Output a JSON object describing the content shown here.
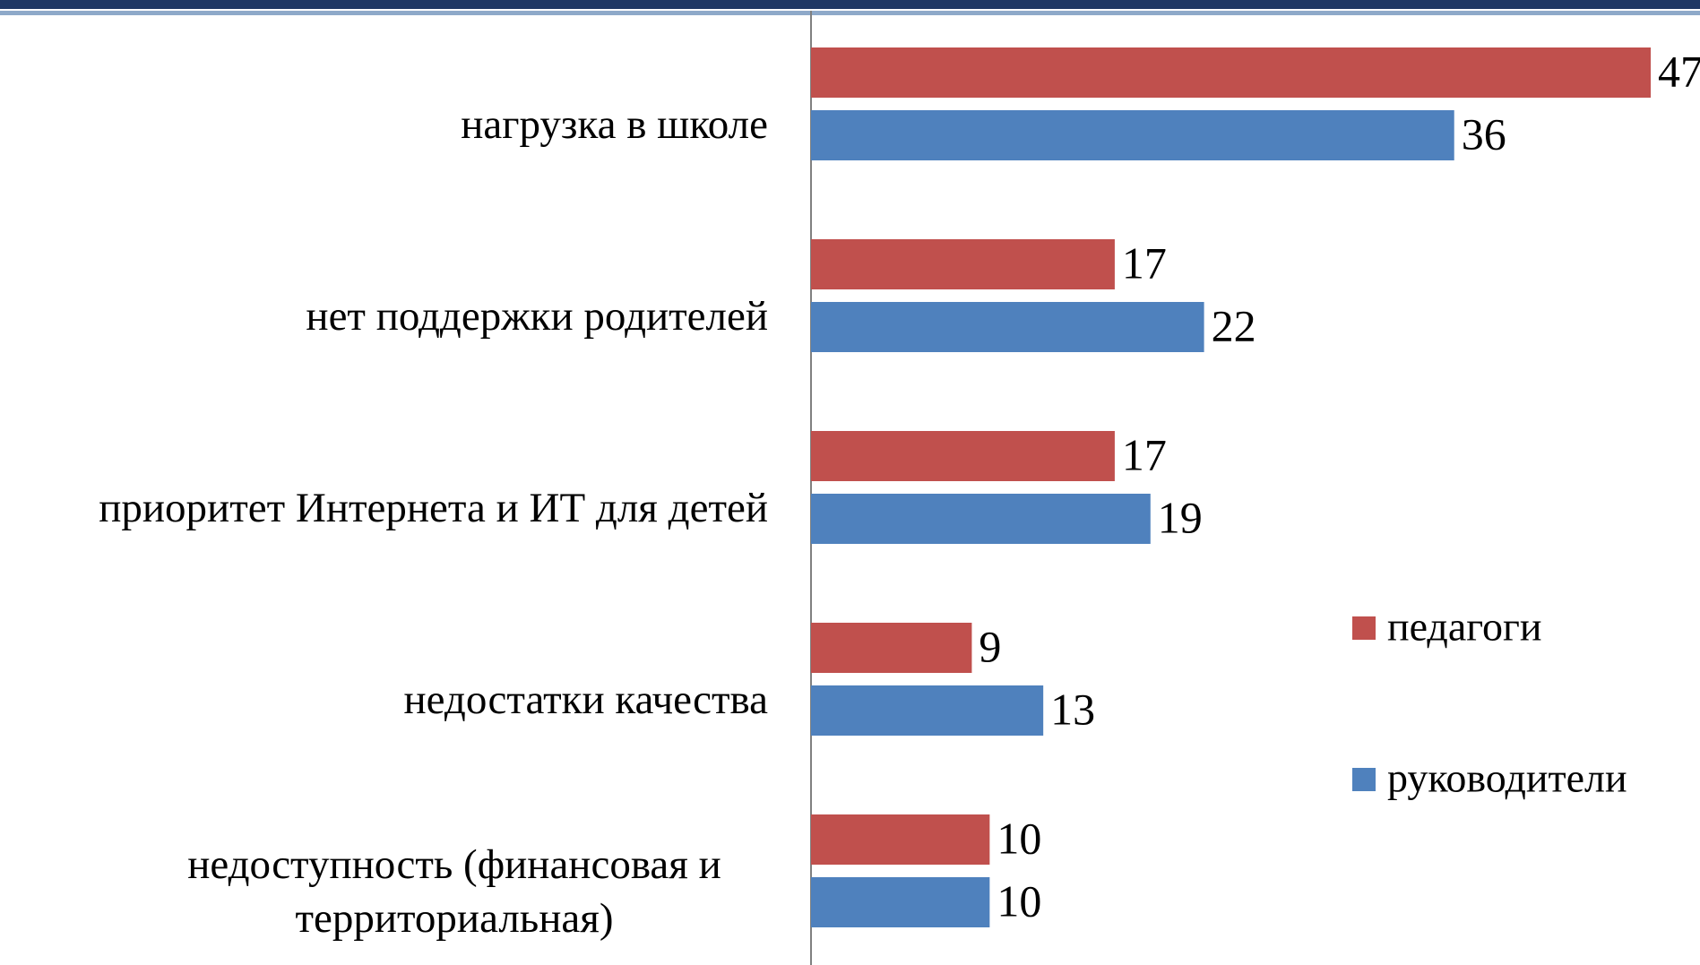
{
  "chart_data": {
    "type": "barh",
    "categories": [
      "нагрузка в школе",
      "нет поддержки родителей",
      "приоритет Интернета и ИТ для детей",
      "недостатки качества",
      "недоступность (финансовая и территориальная)"
    ],
    "series": [
      {
        "name": "педагоги",
        "color": "#c0504d",
        "values": [
          47,
          17,
          17,
          9,
          10
        ]
      },
      {
        "name": "руководители",
        "color": "#4f81bd",
        "values": [
          36,
          22,
          19,
          13,
          10
        ]
      }
    ],
    "legend": "right"
  }
}
